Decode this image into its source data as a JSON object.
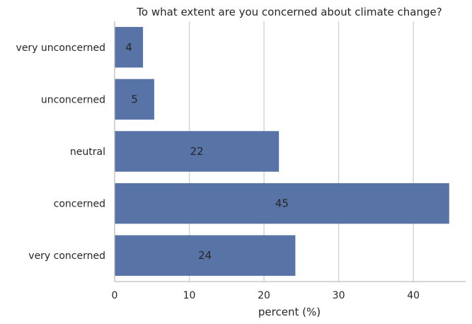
{
  "chart_data": {
    "type": "bar",
    "orientation": "horizontal",
    "title": "To what extent are you concerned about climate change?",
    "xlabel": "percent (%)",
    "ylabel": "",
    "categories": [
      "very unconcerned",
      "unconcerned",
      "neutral",
      "concerned",
      "very concerned"
    ],
    "values": [
      3.8,
      5.3,
      22.0,
      44.8,
      24.2
    ],
    "data_labels": [
      "4",
      "5",
      "22",
      "45",
      "24"
    ],
    "xlim": [
      0,
      47
    ],
    "xticks": [
      0,
      10,
      20,
      30,
      40
    ],
    "xtick_labels": [
      "0",
      "10",
      "20",
      "30",
      "40"
    ],
    "grid": "vertical",
    "bar_color": "#5874a6"
  }
}
